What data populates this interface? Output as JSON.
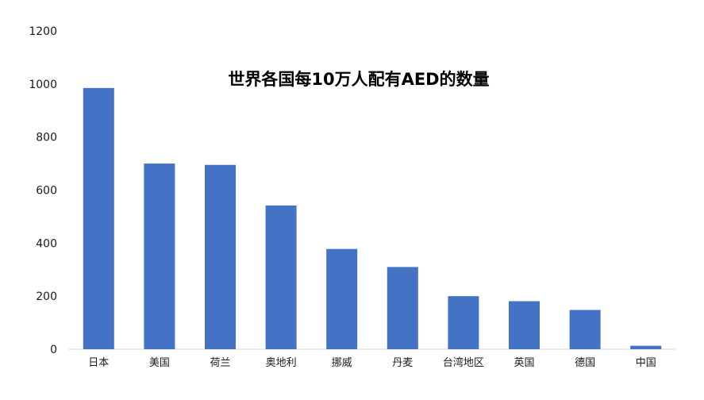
{
  "chart_data": {
    "type": "bar",
    "title": "世界各国每10万人配有AED的数量",
    "categories": [
      "日本",
      "美国",
      "荷兰",
      "奥地利",
      "挪威",
      "丹麦",
      "台湾地区",
      "英国",
      "德国",
      "中国"
    ],
    "values": [
      985,
      700,
      695,
      542,
      378,
      310,
      200,
      181,
      148,
      13
    ],
    "ylim": [
      0,
      1200
    ],
    "yticks": [
      0,
      200,
      400,
      600,
      800,
      1000,
      1200
    ],
    "xlabel": "",
    "ylabel": "",
    "grid": false,
    "legend": "none",
    "bar_color": "#4472C4"
  }
}
